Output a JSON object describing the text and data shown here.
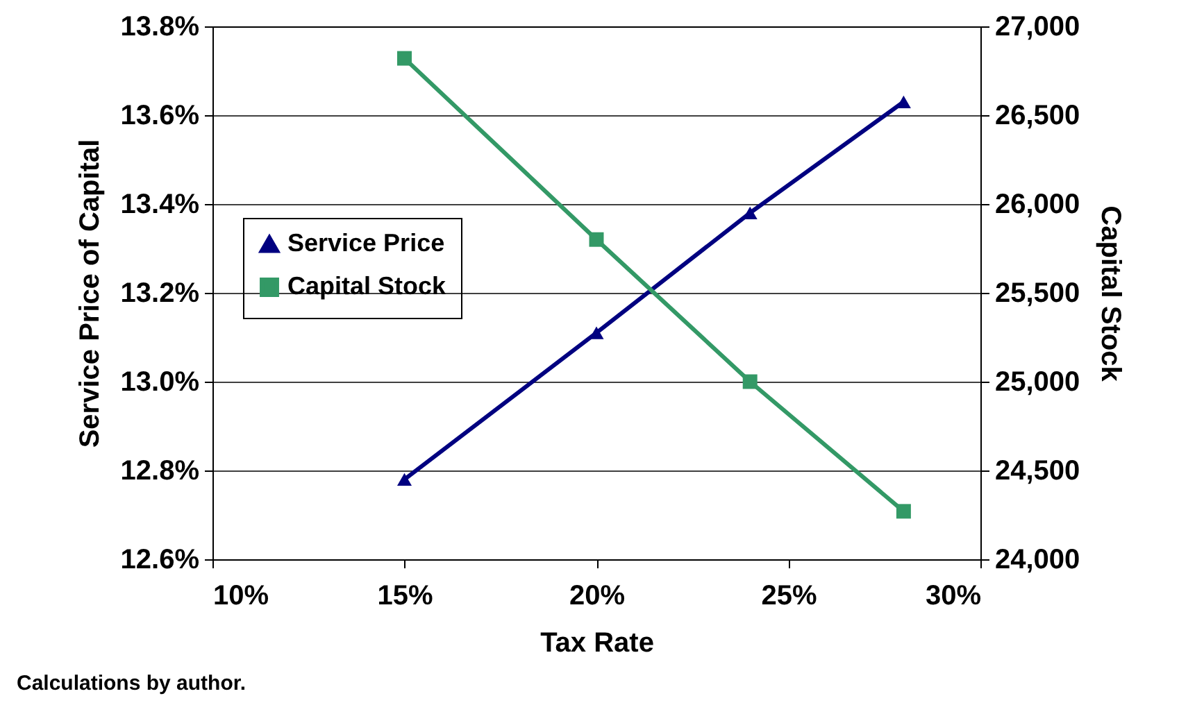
{
  "chart_data": {
    "type": "line",
    "xlabel": "Tax Rate",
    "ylabel": "Service Price of Capital",
    "y2label": "Capital Stock",
    "x": [
      15,
      20,
      24,
      28
    ],
    "series": [
      {
        "name": "Service Price",
        "color": "#000080",
        "marker": "triangle",
        "values": [
          12.78,
          13.11,
          13.38,
          13.63
        ]
      },
      {
        "name": "Capital Stock",
        "color": "#339966",
        "marker": "square",
        "axis": "y2",
        "values": [
          26820,
          25800,
          25000,
          24270
        ]
      }
    ],
    "xlim": [
      10,
      30
    ],
    "xticks": [
      {
        "value": 10,
        "label": "10%"
      },
      {
        "value": 15,
        "label": "15%"
      },
      {
        "value": 20,
        "label": "20%"
      },
      {
        "value": 25,
        "label": "25%"
      },
      {
        "value": 30,
        "label": "30%"
      }
    ],
    "ylim": [
      12.6,
      13.8
    ],
    "yticks": [
      {
        "value": 12.6,
        "label": "12.6%"
      },
      {
        "value": 12.8,
        "label": "12.8%"
      },
      {
        "value": 13.0,
        "label": "13.0%"
      },
      {
        "value": 13.2,
        "label": "13.2%"
      },
      {
        "value": 13.4,
        "label": "13.4%"
      },
      {
        "value": 13.6,
        "label": "13.6%"
      },
      {
        "value": 13.8,
        "label": "13.8%"
      }
    ],
    "y2lim": [
      24000,
      27000
    ],
    "y2ticks": [
      {
        "value": 24000,
        "label": "24,000"
      },
      {
        "value": 24500,
        "label": "24,500"
      },
      {
        "value": 25000,
        "label": "25,000"
      },
      {
        "value": 25500,
        "label": "25,500"
      },
      {
        "value": 26000,
        "label": "26,000"
      },
      {
        "value": 26500,
        "label": "26,500"
      },
      {
        "value": 27000,
        "label": "27,000"
      }
    ],
    "grid": "y",
    "legend": "left",
    "line_style": "solid",
    "annotations": [
      "Calculations by author."
    ]
  }
}
